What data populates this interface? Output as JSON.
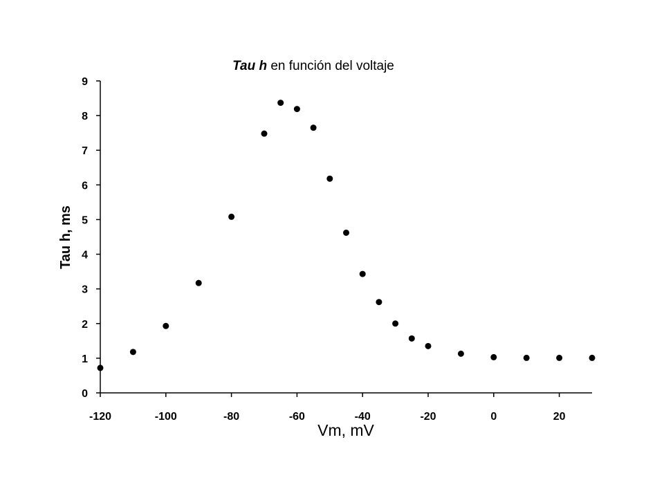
{
  "chart_data": {
    "type": "scatter",
    "title_em": "Tau h",
    "title_rest": " en función del voltaje",
    "xlabel": "Vm, mV",
    "ylabel": "Tau h, ms",
    "xlim": [
      -120,
      30
    ],
    "ylim": [
      0,
      9
    ],
    "xticks": [
      -120,
      -100,
      -80,
      -60,
      -40,
      -20,
      0,
      20
    ],
    "yticks": [
      0,
      1,
      2,
      3,
      4,
      5,
      6,
      7,
      8,
      9
    ],
    "grid": false,
    "marker_color": "#000000",
    "points": [
      {
        "x": -120,
        "y": 0.72
      },
      {
        "x": -110,
        "y": 1.18
      },
      {
        "x": -100,
        "y": 1.93
      },
      {
        "x": -90,
        "y": 3.17
      },
      {
        "x": -80,
        "y": 5.08
      },
      {
        "x": -70,
        "y": 7.48
      },
      {
        "x": -65,
        "y": 8.37
      },
      {
        "x": -60,
        "y": 8.19
      },
      {
        "x": -55,
        "y": 7.65
      },
      {
        "x": -50,
        "y": 6.18
      },
      {
        "x": -45,
        "y": 4.62
      },
      {
        "x": -40,
        "y": 3.43
      },
      {
        "x": -35,
        "y": 2.62
      },
      {
        "x": -30,
        "y": 2.0
      },
      {
        "x": -25,
        "y": 1.57
      },
      {
        "x": -20,
        "y": 1.35
      },
      {
        "x": -10,
        "y": 1.13
      },
      {
        "x": 0,
        "y": 1.03
      },
      {
        "x": 10,
        "y": 1.01
      },
      {
        "x": 20,
        "y": 1.01
      },
      {
        "x": 30,
        "y": 1.01
      }
    ]
  }
}
